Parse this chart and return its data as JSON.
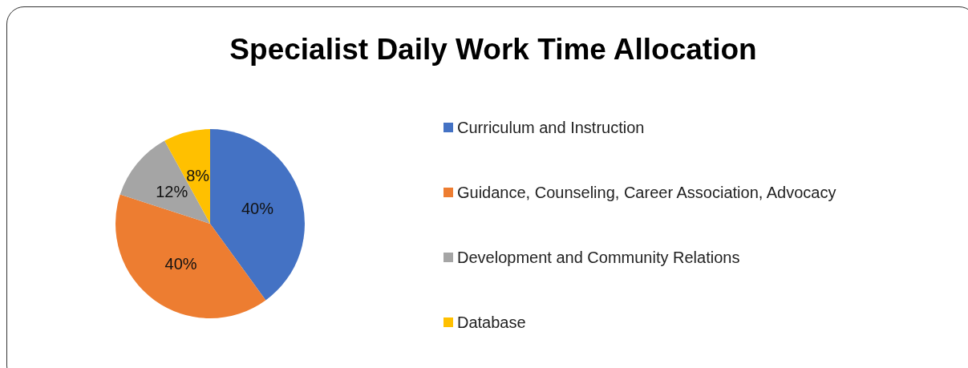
{
  "chart_data": {
    "type": "pie",
    "title": "Specialist Daily Work Time Allocation",
    "categories": [
      "Curriculum and Instruction",
      "Guidance, Counseling, Career Association, Advocacy",
      "Development and Community Relations",
      "Database"
    ],
    "values": [
      40,
      40,
      12,
      8
    ],
    "colors": [
      "#4472c4",
      "#ed7d31",
      "#a5a5a5",
      "#ffc000"
    ],
    "value_labels": [
      "40%",
      "40%",
      "12%",
      "8%"
    ],
    "legend": "right"
  }
}
